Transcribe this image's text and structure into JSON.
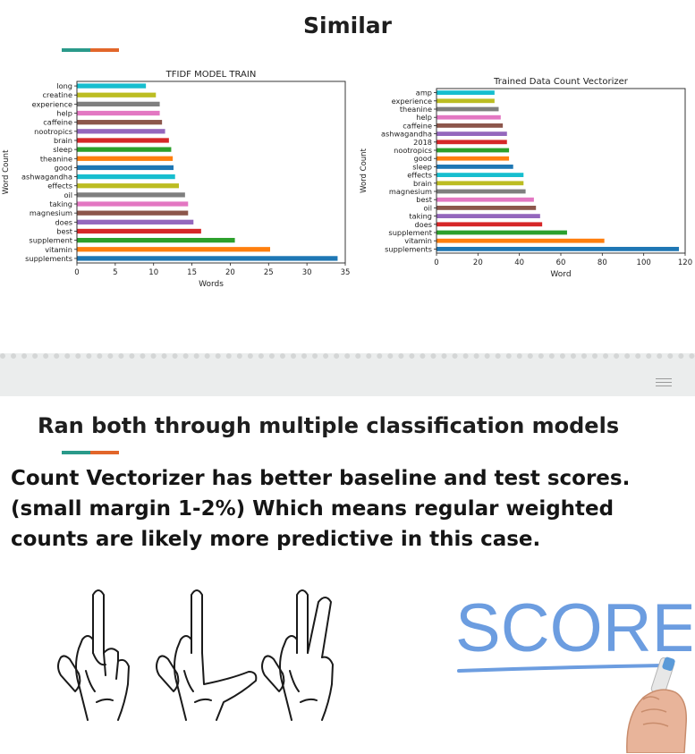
{
  "slide_top": {
    "title": "Similar"
  },
  "slide_bottom": {
    "title": "Ran both through multiple classification models",
    "body": "Count Vectorizer has better baseline and test scores. (small margin 1-2%) Which means regular weighted counts are likely more predictive in this case.",
    "score_word": "SCORE"
  },
  "colors": {
    "teal": "#2a9a8a",
    "orange": "#e2662a",
    "score_blue": "#6c9de0"
  },
  "icons": [
    "one-finger-hand-icon",
    "two-finger-L-hand-icon",
    "three-finger-hand-icon",
    "marker-hand-icon"
  ],
  "chart_data": [
    {
      "type": "bar",
      "orientation": "horizontal",
      "title": "TFIDF MODEL TRAIN",
      "xlabel": "Words",
      "ylabel": "Word Count",
      "xlim": [
        0,
        35
      ],
      "xticks": [
        0,
        5,
        10,
        15,
        20,
        25,
        30,
        35
      ],
      "categories": [
        "supplements",
        "vitamin",
        "supplement",
        "best",
        "does",
        "magnesium",
        "taking",
        "oil",
        "effects",
        "ashwagandha",
        "good",
        "theanine",
        "sleep",
        "brain",
        "nootropics",
        "caffeine",
        "help",
        "experience",
        "creatine",
        "long"
      ],
      "values": [
        34.0,
        25.2,
        20.6,
        16.2,
        15.2,
        14.5,
        14.5,
        14.1,
        13.3,
        12.8,
        12.6,
        12.5,
        12.3,
        12.0,
        11.5,
        11.1,
        10.8,
        10.8,
        10.3,
        9.0
      ],
      "bar_colors": [
        "#1f77b4",
        "#ff7f0e",
        "#2ca02c",
        "#d62728",
        "#9467bd",
        "#8c564b",
        "#e377c2",
        "#7f7f7f",
        "#bcbd22",
        "#17becf",
        "#1f77b4",
        "#ff7f0e",
        "#2ca02c",
        "#d62728",
        "#9467bd",
        "#8c564b",
        "#e377c2",
        "#7f7f7f",
        "#bcbd22",
        "#17becf"
      ]
    },
    {
      "type": "bar",
      "orientation": "horizontal",
      "title": "Trained Data Count Vectorizer",
      "xlabel": "Word",
      "ylabel": "Word Count",
      "xlim": [
        0,
        120
      ],
      "xticks": [
        0,
        20,
        40,
        60,
        80,
        100,
        120
      ],
      "categories": [
        "supplements",
        "vitamin",
        "supplement",
        "does",
        "taking",
        "oil",
        "best",
        "magnesium",
        "brain",
        "effects",
        "sleep",
        "good",
        "nootropics",
        "2018",
        "ashwagandha",
        "caffeine",
        "help",
        "theanine",
        "experience",
        "amp"
      ],
      "values": [
        117,
        81,
        63,
        51,
        50,
        48,
        47,
        43,
        42,
        42,
        37,
        35,
        35,
        34,
        34,
        32,
        31,
        30,
        28,
        28
      ],
      "bar_colors": [
        "#1f77b4",
        "#ff7f0e",
        "#2ca02c",
        "#d62728",
        "#9467bd",
        "#8c564b",
        "#e377c2",
        "#7f7f7f",
        "#bcbd22",
        "#17becf",
        "#1f77b4",
        "#ff7f0e",
        "#2ca02c",
        "#d62728",
        "#9467bd",
        "#8c564b",
        "#e377c2",
        "#7f7f7f",
        "#bcbd22",
        "#17becf"
      ]
    }
  ]
}
